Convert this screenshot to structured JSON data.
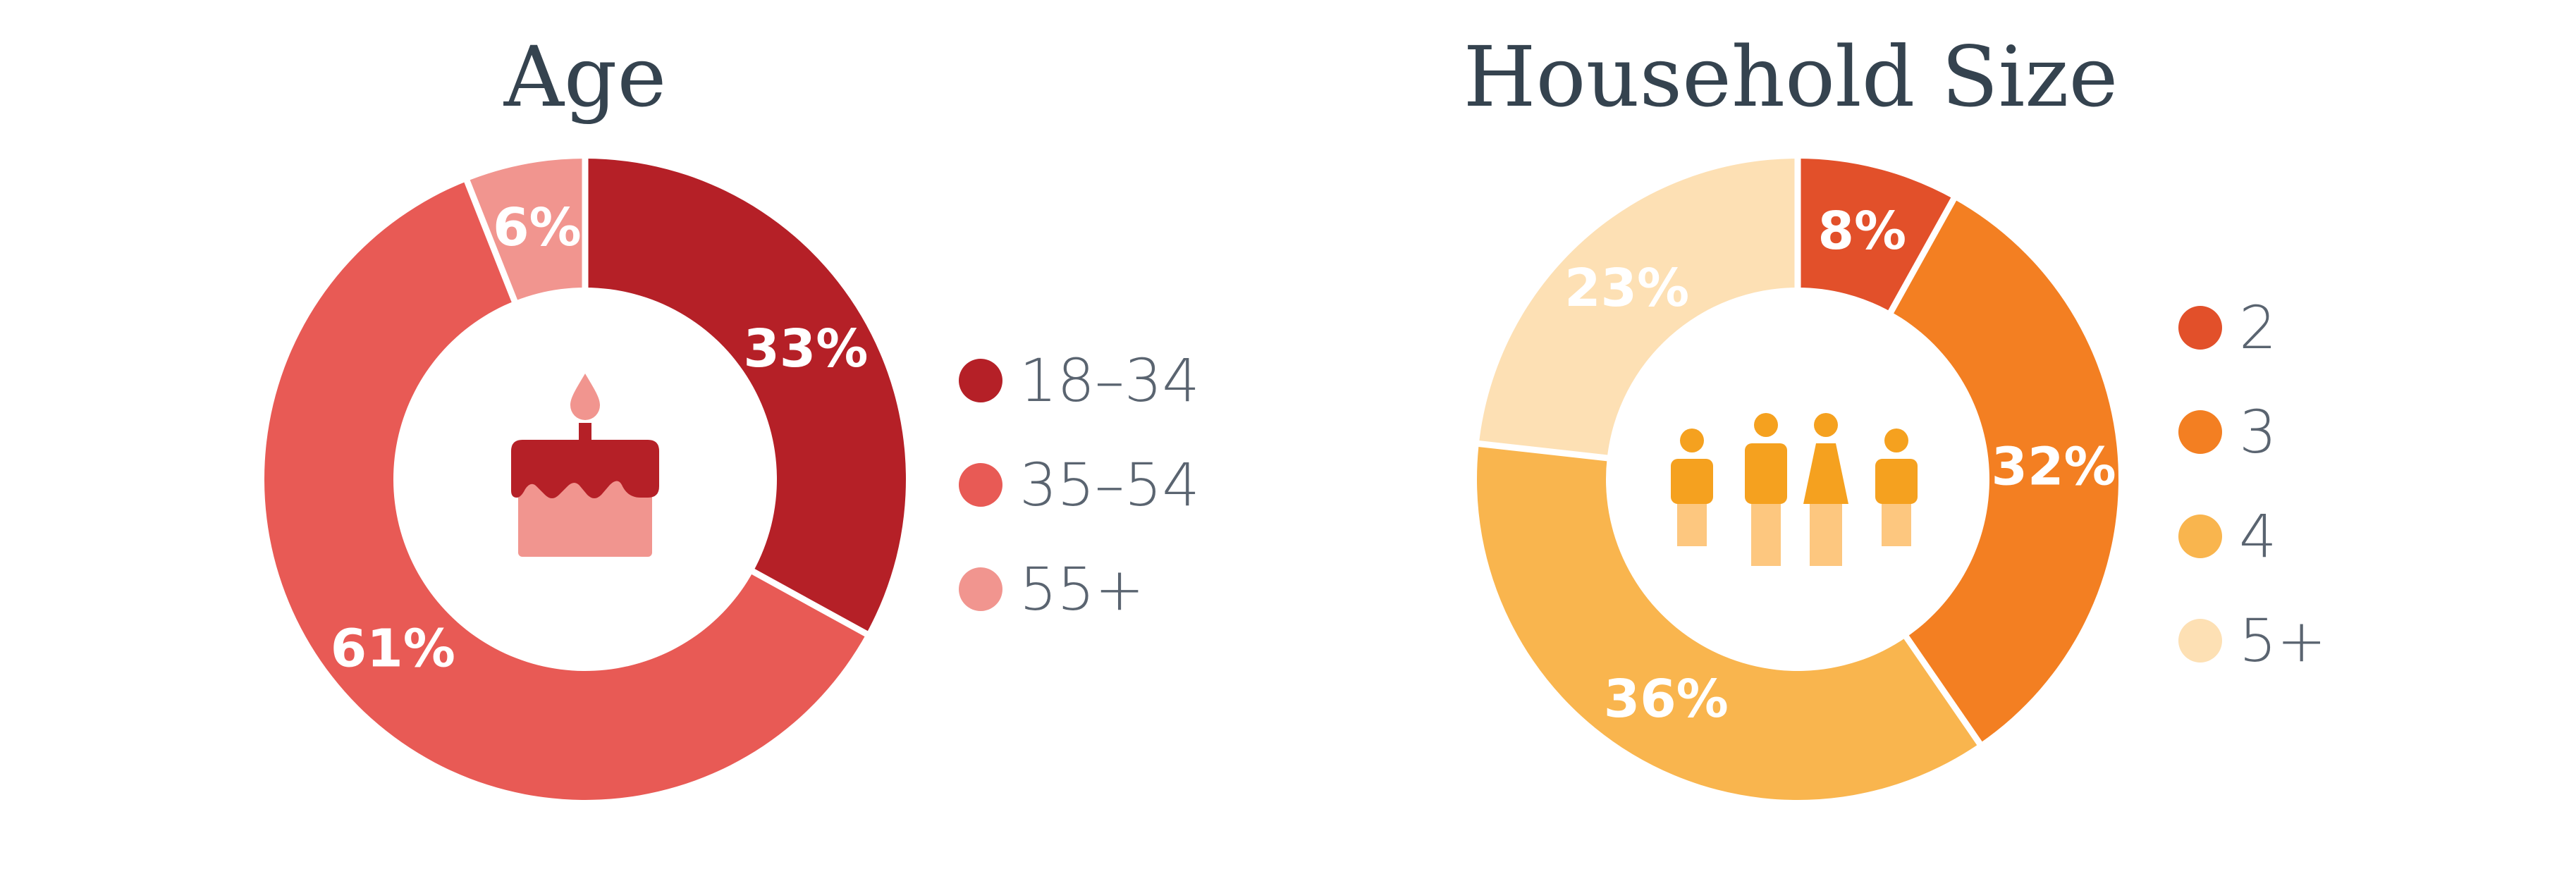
{
  "chart_data": [
    {
      "type": "pie",
      "title": "Age",
      "categories": [
        "18–34",
        "35–54",
        "55+"
      ],
      "values": [
        33,
        61,
        6
      ],
      "value_labels": [
        "33%",
        "61%",
        "6%"
      ],
      "colors": [
        "#b52027",
        "#e85a55",
        "#f1958f"
      ],
      "center_icon": "birthday-cake-icon",
      "legend": "right"
    },
    {
      "type": "pie",
      "title": "Household Size",
      "categories": [
        "2",
        "3",
        "4",
        "5+"
      ],
      "values": [
        8,
        32,
        36,
        23
      ],
      "value_labels": [
        "8%",
        "32%",
        "36%",
        "23%"
      ],
      "colors": [
        "#e2502a",
        "#f37f22",
        "#f9b54e",
        "#fde0b4"
      ],
      "center_icon": "family-icon",
      "legend": "right"
    }
  ]
}
